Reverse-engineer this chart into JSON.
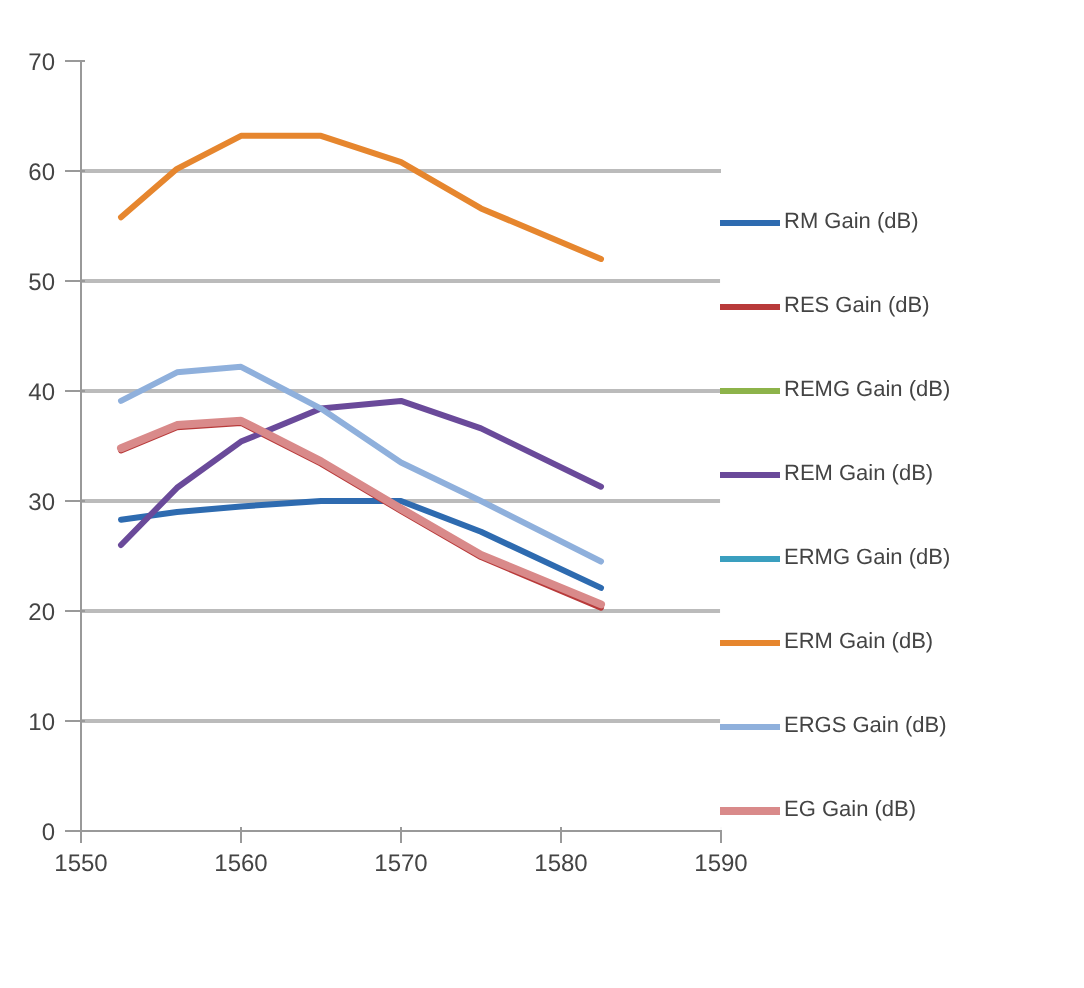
{
  "chart_data": {
    "type": "line",
    "x": [
      1552.5,
      1556,
      1560,
      1565,
      1570,
      1575,
      1582.5
    ],
    "series": [
      {
        "name": "RM Gain (dB)",
        "color": "#2e6bb0",
        "values": [
          28.3,
          29.0,
          29.5,
          30.0,
          30.0,
          27.2,
          22.1
        ]
      },
      {
        "name": "RES Gain (dB)",
        "color": "#b83a3a",
        "values": [
          34.6,
          36.7,
          37.1,
          33.4,
          29.1,
          24.9,
          20.3
        ]
      },
      {
        "name": "REMG Gain (dB)",
        "color": "#8db34a",
        "values": [
          null,
          null,
          null,
          null,
          null,
          null,
          null
        ]
      },
      {
        "name": "REM Gain (dB)",
        "color": "#6a4a9a",
        "values": [
          26.0,
          31.2,
          35.4,
          38.4,
          39.1,
          36.6,
          31.3
        ]
      },
      {
        "name": "ERMG Gain (dB)",
        "color": "#3a9fbf",
        "values": [
          null,
          null,
          null,
          null,
          null,
          null,
          null
        ]
      },
      {
        "name": "ERM Gain (dB)",
        "color": "#e6862e",
        "values": [
          55.8,
          60.2,
          63.2,
          63.2,
          60.8,
          56.6,
          52.0
        ]
      },
      {
        "name": "ERGS Gain (dB)",
        "color": "#8fb0dc",
        "values": [
          39.1,
          41.7,
          42.2,
          38.4,
          33.5,
          30.0,
          24.5
        ]
      },
      {
        "name": "EG Gain (dB)",
        "color": "#d98a8a",
        "values": [
          34.8,
          36.9,
          37.3,
          33.6,
          29.3,
          25.1,
          20.6
        ]
      }
    ],
    "xlim": [
      1550,
      1590
    ],
    "xticks": [
      1550,
      1560,
      1570,
      1580,
      1590
    ],
    "ylim": [
      0,
      70
    ],
    "yticks": [
      0,
      10,
      20,
      30,
      40,
      50,
      60,
      70
    ],
    "grid": "y",
    "legend": "right",
    "marker": "none",
    "line_style": "solid"
  }
}
